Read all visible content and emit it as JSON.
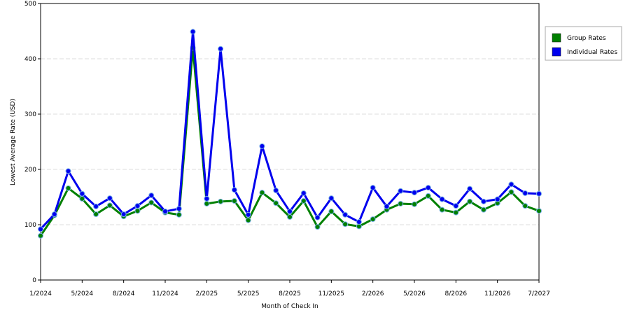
{
  "chart_data": {
    "type": "line",
    "x_label": "Month of Check In",
    "y_label": "Lowest Average Rate (USD)",
    "categories": [
      "1/2024",
      null,
      null,
      "5/2024",
      null,
      null,
      "8/2024",
      null,
      null,
      "11/2024",
      null,
      null,
      "2/2025",
      null,
      null,
      "5/2025",
      null,
      null,
      "8/2025",
      null,
      null,
      "11/2025",
      null,
      null,
      "2/2026",
      null,
      null,
      "5/2026",
      null,
      null,
      "8/2026",
      null,
      null,
      "11/2026",
      null,
      null,
      "7/2027"
    ],
    "series": [
      {
        "name": "Group Rates",
        "color": "#008000",
        "values": [
          80,
          117,
          166,
          147,
          119,
          135,
          115,
          125,
          140,
          122,
          118,
          420,
          138,
          142,
          143,
          108,
          158,
          139,
          114,
          143,
          96,
          124,
          101,
          97,
          110,
          127,
          138,
          137,
          152,
          127,
          122,
          142,
          127,
          139,
          159,
          134,
          125
        ]
      },
      {
        "name": "Individual Rates",
        "color": "#0000ee",
        "values": [
          92,
          119,
          197,
          156,
          133,
          148,
          119,
          134,
          153,
          124,
          129,
          449,
          147,
          418,
          163,
          118,
          242,
          162,
          124,
          157,
          113,
          148,
          118,
          105,
          167,
          133,
          161,
          158,
          167,
          146,
          134,
          165,
          142,
          146,
          173,
          157,
          156
        ]
      }
    ],
    "ylim": [
      0,
      500
    ],
    "yticks": [
      0,
      100,
      200,
      300,
      400,
      500
    ],
    "grid": true,
    "legend": "right"
  }
}
